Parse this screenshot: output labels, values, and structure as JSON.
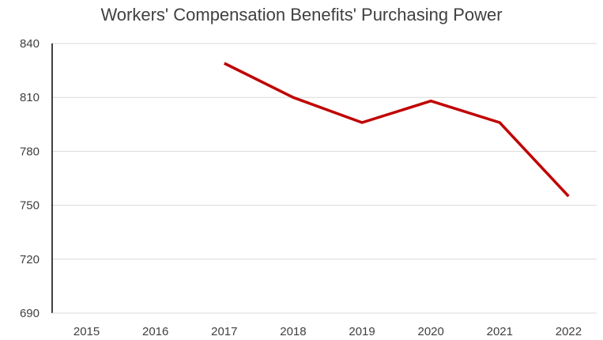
{
  "chart_data": {
    "type": "line",
    "title": "Workers' Compensation Benefits' Purchasing Power",
    "xlabel": "",
    "ylabel": "",
    "categories": [
      "2015",
      "2016",
      "2017",
      "2018",
      "2019",
      "2020",
      "2021",
      "2022"
    ],
    "series": [
      {
        "values": [
          null,
          null,
          829,
          810,
          796,
          808,
          796,
          755
        ]
      }
    ],
    "ylim": [
      690,
      840
    ],
    "yticks": [
      690,
      720,
      750,
      780,
      810,
      840
    ],
    "grid": true,
    "legend": "none",
    "colors": {
      "line": "#c00000",
      "grid": "#d9d9d9",
      "axis": "#000000",
      "text": "#404040"
    }
  }
}
